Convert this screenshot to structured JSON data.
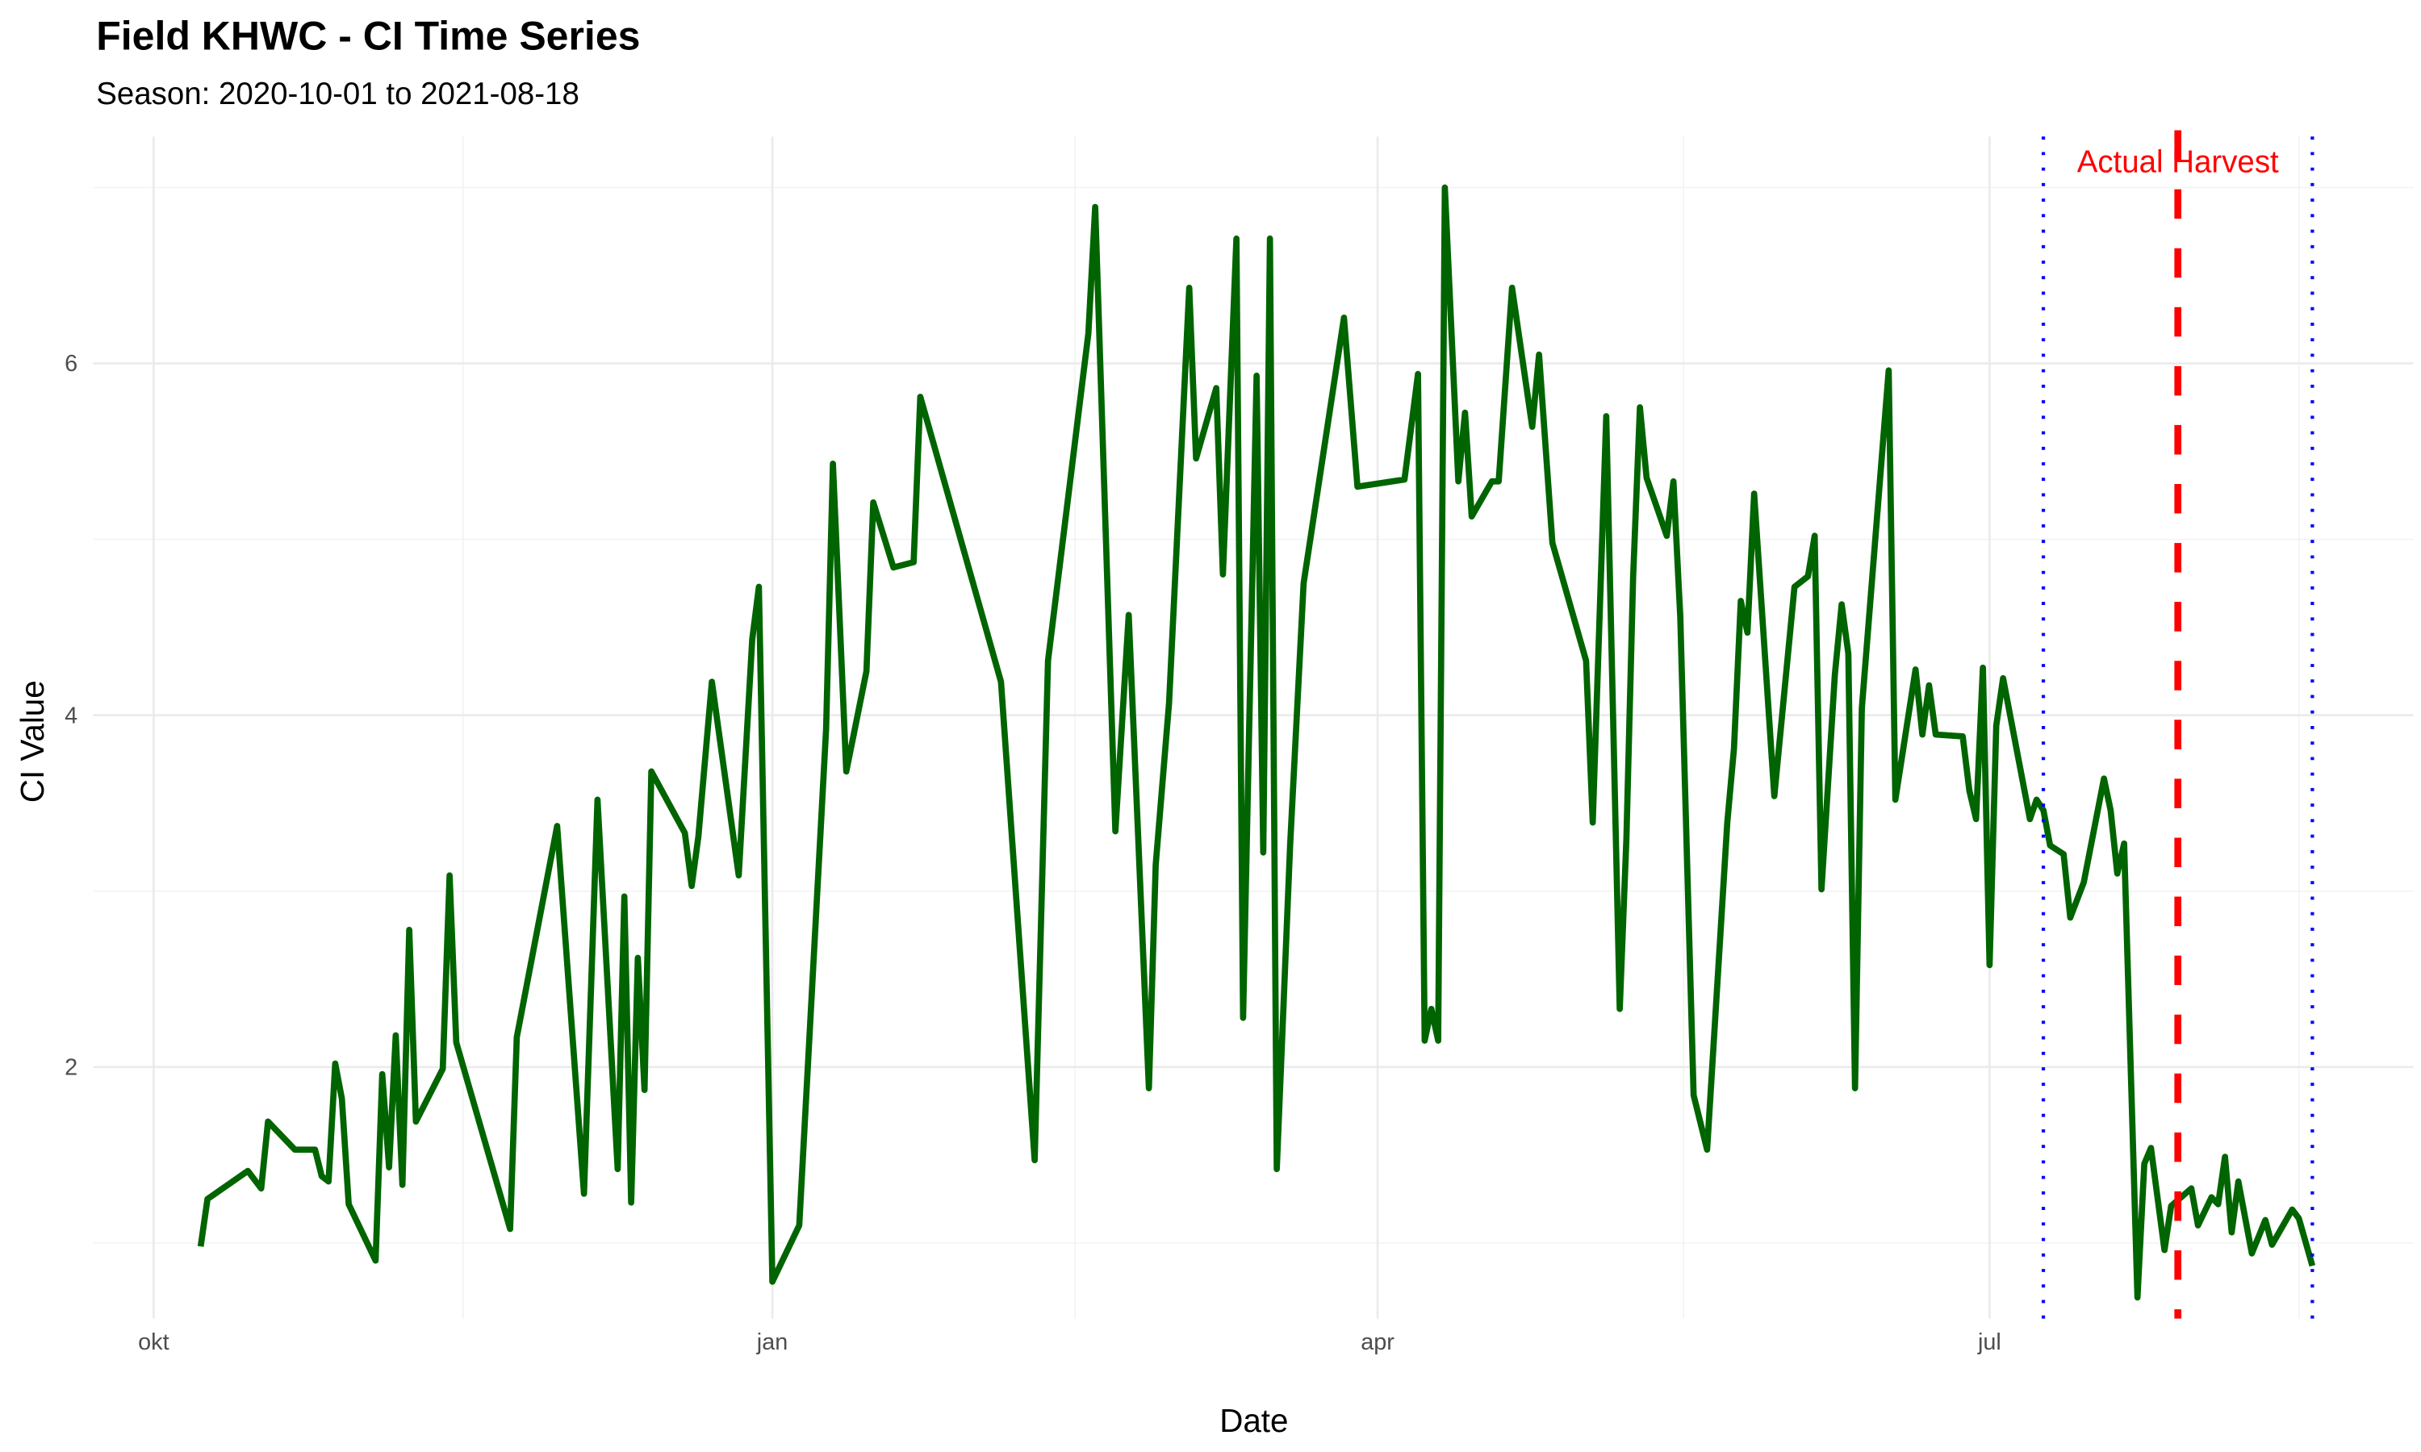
{
  "chart_data": {
    "type": "line",
    "title": "Field KHWC - CI Time Series",
    "subtitle": "Season: 2020-10-01 to 2021-08-18",
    "xlabel": "Date",
    "ylabel": "CI Value",
    "x_ticks": [
      {
        "date": "2020-10-01",
        "label": "okt"
      },
      {
        "date": "2021-01-01",
        "label": "jan"
      },
      {
        "date": "2021-04-01",
        "label": "apr"
      },
      {
        "date": "2021-07-01",
        "label": "jul"
      }
    ],
    "y_ticks": [
      2,
      4,
      6
    ],
    "y_minor": [
      1,
      3,
      5,
      7
    ],
    "xlim": [
      "2020-09-22",
      "2021-09-02"
    ],
    "ylim": [
      0.57,
      7.29
    ],
    "grid": true,
    "line_color": "#006400",
    "series": [
      {
        "x": [
          "2020-10-08",
          "2020-10-09",
          "2020-10-15",
          "2020-10-17",
          "2020-10-18",
          "2020-10-22",
          "2020-10-25",
          "2020-10-26",
          "2020-10-27",
          "2020-10-28",
          "2020-10-29",
          "2020-10-30",
          "2020-11-03",
          "2020-11-04",
          "2020-11-05",
          "2020-11-06",
          "2020-11-07",
          "2020-11-08",
          "2020-11-09",
          "2020-11-13",
          "2020-11-14",
          "2020-11-15",
          "2020-11-23",
          "2020-11-24",
          "2020-11-30",
          "2020-12-04",
          "2020-12-06",
          "2020-12-09",
          "2020-12-10",
          "2020-12-11",
          "2020-12-12",
          "2020-12-13",
          "2020-12-14",
          "2020-12-19",
          "2020-12-20",
          "2020-12-21",
          "2020-12-23",
          "2020-12-27",
          "2020-12-29",
          "2020-12-30",
          "2021-01-01",
          "2021-01-05",
          "2021-01-09",
          "2021-01-10",
          "2021-01-12",
          "2021-01-15",
          "2021-01-16",
          "2021-01-19",
          "2021-01-22",
          "2021-01-23",
          "2021-02-04",
          "2021-02-09",
          "2021-02-11",
          "2021-02-17",
          "2021-02-18",
          "2021-02-21",
          "2021-02-23",
          "2021-02-26",
          "2021-02-27",
          "2021-03-01",
          "2021-03-04",
          "2021-03-05",
          "2021-03-08",
          "2021-03-09",
          "2021-03-11",
          "2021-03-12",
          "2021-03-14",
          "2021-03-15",
          "2021-03-16",
          "2021-03-17",
          "2021-03-19",
          "2021-03-21",
          "2021-03-27",
          "2021-03-29",
          "2021-04-05",
          "2021-04-07",
          "2021-04-08",
          "2021-04-09",
          "2021-04-10",
          "2021-04-11",
          "2021-04-13",
          "2021-04-14",
          "2021-04-15",
          "2021-04-18",
          "2021-04-19",
          "2021-04-21",
          "2021-04-24",
          "2021-04-25",
          "2021-04-27",
          "2021-05-02",
          "2021-05-03",
          "2021-05-05",
          "2021-05-07",
          "2021-05-08",
          "2021-05-09",
          "2021-05-10",
          "2021-05-11",
          "2021-05-14",
          "2021-05-15",
          "2021-05-16",
          "2021-05-18",
          "2021-05-20",
          "2021-05-23",
          "2021-05-24",
          "2021-05-25",
          "2021-05-26",
          "2021-05-27",
          "2021-05-30",
          "2021-06-02",
          "2021-06-04",
          "2021-06-05",
          "2021-06-06",
          "2021-06-08",
          "2021-06-09",
          "2021-06-10",
          "2021-06-11",
          "2021-06-12",
          "2021-06-16",
          "2021-06-17",
          "2021-06-20",
          "2021-06-21",
          "2021-06-22",
          "2021-06-23",
          "2021-06-27",
          "2021-06-28",
          "2021-06-29",
          "2021-06-30",
          "2021-07-01",
          "2021-07-02",
          "2021-07-03",
          "2021-07-07",
          "2021-07-08",
          "2021-07-09",
          "2021-07-10",
          "2021-07-12",
          "2021-07-13",
          "2021-07-15",
          "2021-07-18",
          "2021-07-19",
          "2021-07-20",
          "2021-07-21",
          "2021-07-23",
          "2021-07-24",
          "2021-07-25",
          "2021-07-27",
          "2021-07-28",
          "2021-07-31",
          "2021-08-01",
          "2021-08-03",
          "2021-08-04",
          "2021-08-05",
          "2021-08-06",
          "2021-08-07",
          "2021-08-09",
          "2021-08-11",
          "2021-08-12",
          "2021-08-15",
          "2021-08-16",
          "2021-08-18"
        ],
        "y": [
          0.98,
          1.25,
          1.41,
          1.31,
          1.69,
          1.53,
          1.53,
          1.38,
          1.35,
          2.02,
          1.82,
          1.22,
          0.9,
          1.96,
          1.43,
          2.18,
          1.33,
          2.78,
          1.69,
          1.99,
          3.09,
          2.14,
          1.08,
          2.17,
          3.37,
          1.28,
          3.52,
          1.42,
          2.97,
          1.23,
          2.62,
          1.87,
          3.68,
          3.33,
          3.03,
          3.31,
          4.19,
          3.09,
          4.43,
          4.73,
          0.78,
          1.1,
          3.92,
          5.43,
          3.68,
          4.25,
          5.21,
          4.84,
          4.87,
          5.81,
          4.19,
          1.47,
          4.31,
          6.17,
          6.89,
          3.34,
          4.57,
          1.88,
          3.15,
          4.07,
          6.43,
          5.46,
          5.86,
          4.8,
          6.71,
          2.28,
          5.93,
          3.22,
          6.71,
          1.42,
          3.26,
          4.75,
          6.26,
          5.3,
          5.34,
          5.94,
          2.15,
          2.33,
          2.15,
          7.0,
          5.33,
          5.72,
          5.13,
          5.33,
          5.33,
          6.43,
          5.64,
          6.05,
          4.98,
          4.31,
          3.39,
          5.7,
          2.33,
          3.3,
          4.78,
          5.75,
          5.35,
          5.02,
          5.33,
          4.56,
          1.84,
          1.53,
          3.39,
          3.81,
          4.65,
          4.47,
          5.26,
          3.54,
          4.73,
          4.79,
          5.02,
          3.01,
          4.23,
          4.63,
          4.35,
          1.88,
          4.04,
          5.96,
          3.52,
          4.26,
          3.89,
          4.17,
          3.89,
          3.88,
          3.57,
          3.41,
          4.27,
          2.58,
          3.94,
          4.21,
          3.41,
          3.52,
          3.46,
          3.26,
          3.21,
          2.85,
          3.05,
          3.64,
          3.46,
          3.1,
          3.27,
          0.69,
          1.45,
          1.54,
          0.96,
          1.21,
          1.31,
          1.1,
          1.26,
          1.22,
          1.49,
          1.06,
          1.35,
          0.94,
          1.13,
          0.99,
          1.19,
          1.14,
          0.87
        ]
      }
    ],
    "vlines": [
      {
        "date": "2021-07-09",
        "style": "dotted",
        "color": "#0000ff"
      },
      {
        "date": "2021-07-29",
        "style": "dashed",
        "color": "#ff0000"
      },
      {
        "date": "2021-08-18",
        "style": "dotted",
        "color": "#0000ff"
      }
    ],
    "annotations": [
      {
        "text": "Actual Harvest",
        "date": "2021-07-29",
        "color": "#ff0000"
      }
    ]
  }
}
